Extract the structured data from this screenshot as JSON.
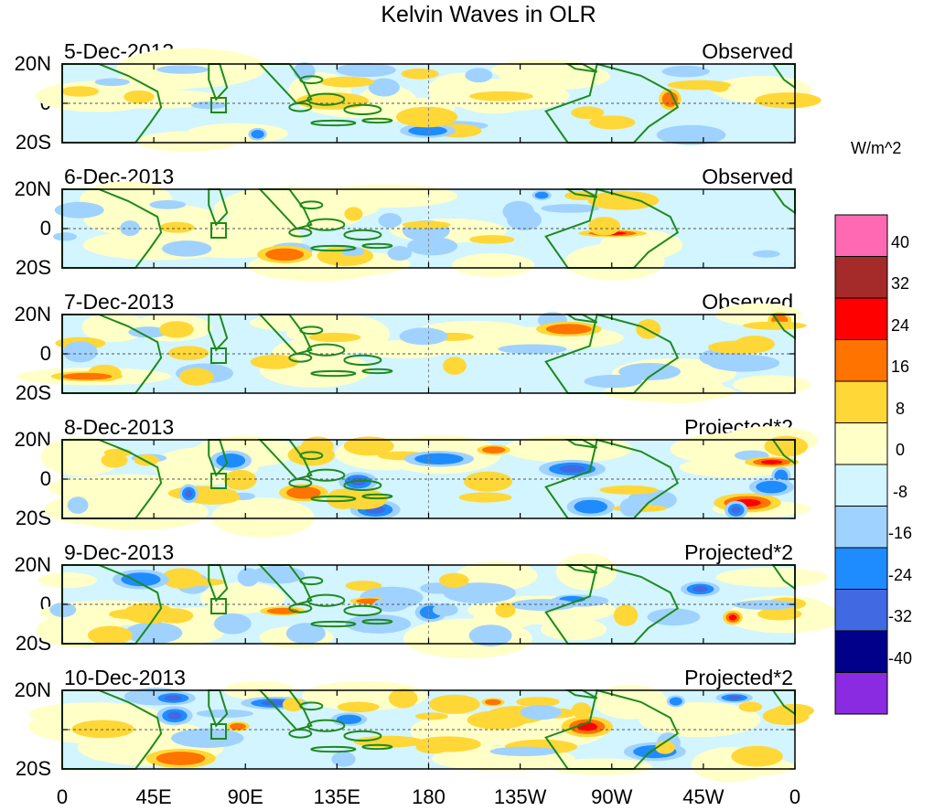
{
  "title": "Kelvin Waves in OLR",
  "units": "W/m^2",
  "panels": [
    {
      "date": "5-Dec-2013",
      "type": "Observed"
    },
    {
      "date": "6-Dec-2013",
      "type": "Observed"
    },
    {
      "date": "7-Dec-2013",
      "type": "Observed"
    },
    {
      "date": "8-Dec-2013",
      "type": "Projected*2"
    },
    {
      "date": "9-Dec-2013",
      "type": "Projected*2"
    },
    {
      "date": "10-Dec-2013",
      "type": "Projected*2"
    }
  ],
  "y_ticks": [
    "20N",
    "0",
    "20S"
  ],
  "x_ticks": [
    "0",
    "45E",
    "90E",
    "135E",
    "180",
    "135W",
    "90W",
    "45W",
    "0"
  ],
  "colorbar": {
    "labels": [
      "40",
      "32",
      "24",
      "16",
      "8",
      "0",
      "-8",
      "-16",
      "-24",
      "-32",
      "-40"
    ],
    "colors": [
      "#ff69b4",
      "#a52a2a",
      "#ff0000",
      "#ff7300",
      "#ffd737",
      "#ffffc8",
      "#d2f5ff",
      "#a0d2ff",
      "#1e8cff",
      "#4169e1",
      "#00008b",
      "#8a2be2"
    ]
  },
  "styles": {
    "land_color": "#1e8a1e",
    "warm_light": "#ffffc8",
    "cool_light": "#d2f5ff"
  }
}
